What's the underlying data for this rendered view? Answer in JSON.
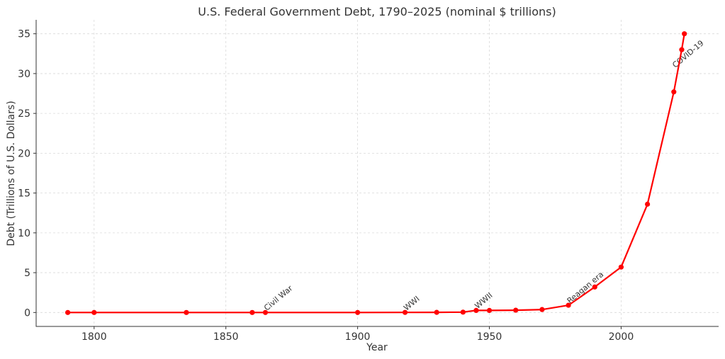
{
  "chart_data": {
    "type": "line",
    "title": "U.S. Federal Government Debt, 1790–2025 (nominal $ trillions)",
    "xlabel": "Year",
    "ylabel": "Debt (Trillions of U.S. Dollars)",
    "xlim": [
      1778,
      2037
    ],
    "ylim": [
      -1.75,
      36.75
    ],
    "xticks": [
      1800,
      1850,
      1900,
      1950,
      2000
    ],
    "yticks": [
      0,
      5,
      10,
      15,
      20,
      25,
      30,
      35
    ],
    "grid": true,
    "line_color": "#ff0000",
    "series": [
      {
        "x": [
          1790,
          1800,
          1835,
          1860,
          1865,
          1900,
          1918,
          1930,
          1940,
          1945,
          1950,
          1960,
          1970,
          1980,
          1990,
          2000,
          2010,
          2020,
          2023,
          2024
        ],
        "y": [
          8e-05,
          8e-05,
          3e-08,
          6e-05,
          0.0027,
          0.0021,
          0.012,
          0.016,
          0.043,
          0.26,
          0.26,
          0.29,
          0.37,
          0.91,
          3.2,
          5.7,
          13.6,
          27.7,
          33.0,
          35.0
        ]
      }
    ],
    "annotations": [
      {
        "text": "Civil War",
        "x": 1865,
        "y": 0.0027
      },
      {
        "text": "WWI",
        "x": 1918,
        "y": 0.012
      },
      {
        "text": "WWII",
        "x": 1945,
        "y": 0.26
      },
      {
        "text": "Reagan era",
        "x": 1980,
        "y": 0.91
      },
      {
        "text": "COVID-19",
        "x": 2020,
        "y": 30.5
      }
    ]
  }
}
